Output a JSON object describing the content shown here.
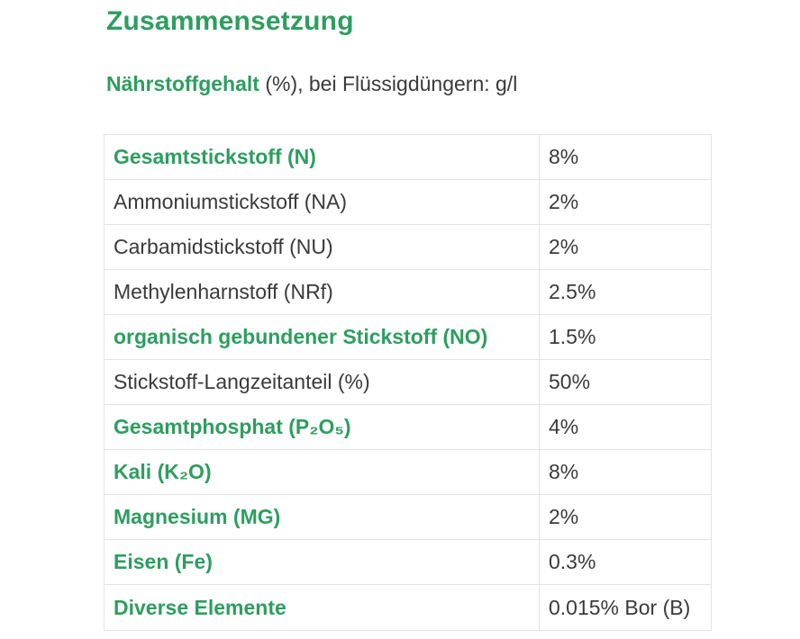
{
  "page": {
    "title": "Zusammensetzung"
  },
  "subtitle": {
    "lead": "Nährstoffgehalt",
    "rest": " (%), bei Flüssigdüngern: g/l"
  },
  "colors": {
    "accent_green": "#2D9E5F",
    "text_dark": "#3A3A3A",
    "table_border": "#E3E3E3"
  },
  "table": {
    "rows": [
      {
        "label": "Gesamtstickstoff (N)",
        "value": "8%",
        "emphasis": true
      },
      {
        "label": "Ammoniumstickstoff (NA)",
        "value": "2%",
        "emphasis": false
      },
      {
        "label": "Carbamidstickstoff (NU)",
        "value": "2%",
        "emphasis": false
      },
      {
        "label": "Methylenharnstoff (NRf)",
        "value": "2.5%",
        "emphasis": false
      },
      {
        "label": "organisch gebundener Stickstoff (NO)",
        "value": "1.5%",
        "emphasis": true
      },
      {
        "label": "Stickstoff-Langzeitanteil (%)",
        "value": "50%",
        "emphasis": false
      },
      {
        "label": "Gesamtphosphat (P₂O₅)",
        "value": "4%",
        "emphasis": true
      },
      {
        "label": "Kali (K₂O)",
        "value": "8%",
        "emphasis": true
      },
      {
        "label": "Magnesium (MG)",
        "value": "2%",
        "emphasis": true
      },
      {
        "label": "Eisen (Fe)",
        "value": "0.3%",
        "emphasis": true
      },
      {
        "label": "Diverse Elemente",
        "value": "0.015% Bor (B)",
        "emphasis": true
      }
    ]
  }
}
